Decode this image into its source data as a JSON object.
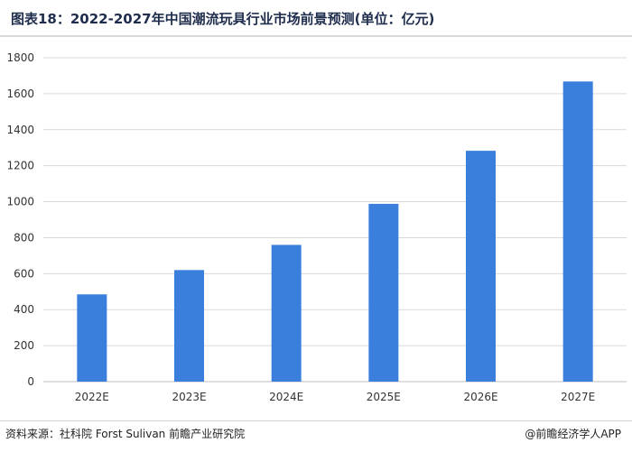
{
  "title": "图表18：2022-2027年中国潮流玩具行业市场前景预测(单位：亿元)",
  "source": "资料来源：社科院 Forst Sulivan 前瞻产业研究院",
  "brand": "@前瞻经济学人APP",
  "colors": {
    "bar": "#3b7fdd",
    "grid": "#d9d9d9",
    "axis": "#bfbfbf"
  },
  "chart_data": {
    "type": "bar",
    "categories": [
      "2022E",
      "2023E",
      "2024E",
      "2025E",
      "2026E",
      "2027E"
    ],
    "values": [
      485,
      620,
      760,
      988,
      1283,
      1668
    ],
    "ylim": [
      0,
      1800
    ],
    "yticks": [
      0,
      200,
      400,
      600,
      800,
      1000,
      1200,
      1400,
      1600,
      1800
    ],
    "grid": true
  }
}
